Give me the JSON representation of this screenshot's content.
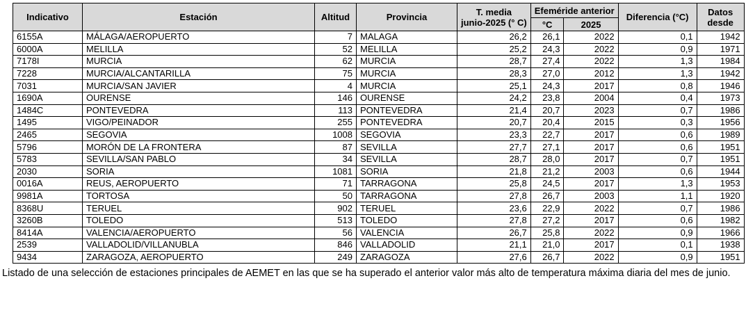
{
  "colors": {
    "header_bg": "#d9d9d9",
    "border": "#000000",
    "text": "#000000",
    "page_bg": "#ffffff"
  },
  "table": {
    "header": {
      "indicativo": "Indicativo",
      "estacion": "Estación",
      "altitud": "Altitud",
      "provincia": "Provincia",
      "t_media_line1": "T. media",
      "t_media_line2": "junio-2025 (° C)",
      "efemeride_group": "Efeméride anterior",
      "efemeride_c": "°C",
      "efemeride_year": "2025",
      "diferencia": "Diferencia (°C)",
      "datos_line1": "Datos",
      "datos_line2": "desde"
    },
    "columns": [
      {
        "name": "indicativo",
        "align": "left"
      },
      {
        "name": "estacion",
        "align": "left"
      },
      {
        "name": "altitud",
        "align": "right"
      },
      {
        "name": "provincia",
        "align": "left"
      },
      {
        "name": "t-media",
        "align": "right"
      },
      {
        "name": "efemeride-c",
        "align": "right"
      },
      {
        "name": "efemeride-year",
        "align": "right"
      },
      {
        "name": "diferencia",
        "align": "right"
      },
      {
        "name": "datos-desde",
        "align": "right"
      }
    ],
    "rows": [
      [
        "6155A",
        "MÁLAGA/AEROPUERTO",
        "7",
        "MALAGA",
        "26,2",
        "26,1",
        "2022",
        "0,1",
        "1942"
      ],
      [
        "6000A",
        "MELILLA",
        "52",
        "MELILLA",
        "25,2",
        "24,3",
        "2022",
        "0,9",
        "1971"
      ],
      [
        "7178I",
        "MURCIA",
        "62",
        "MURCIA",
        "28,7",
        "27,4",
        "2022",
        "1,3",
        "1984"
      ],
      [
        "7228",
        "MURCIA/ALCANTARILLA",
        "75",
        "MURCIA",
        "28,3",
        "27,0",
        "2012",
        "1,3",
        "1942"
      ],
      [
        "7031",
        "MURCIA/SAN JAVIER",
        "4",
        "MURCIA",
        "25,1",
        "24,3",
        "2017",
        "0,8",
        "1946"
      ],
      [
        "1690A",
        "OURENSE",
        "146",
        "OURENSE",
        "24,2",
        "23,8",
        "2004",
        "0,4",
        "1973"
      ],
      [
        "1484C",
        "PONTEVEDRA",
        "113",
        "PONTEVEDRA",
        "21,4",
        "20,7",
        "2023",
        "0,7",
        "1986"
      ],
      [
        "1495",
        "VIGO/PEINADOR",
        "255",
        "PONTEVEDRA",
        "20,7",
        "20,4",
        "2015",
        "0,3",
        "1956"
      ],
      [
        "2465",
        "SEGOVIA",
        "1008",
        "SEGOVIA",
        "23,3",
        "22,7",
        "2017",
        "0,6",
        "1989"
      ],
      [
        "5796",
        "MORÓN DE LA FRONTERA",
        "87",
        "SEVILLA",
        "27,7",
        "27,1",
        "2017",
        "0,6",
        "1951"
      ],
      [
        "5783",
        "SEVILLA/SAN PABLO",
        "34",
        "SEVILLA",
        "28,7",
        "28,0",
        "2017",
        "0,7",
        "1951"
      ],
      [
        "2030",
        "SORIA",
        "1081",
        "SORIA",
        "21,8",
        "21,2",
        "2003",
        "0,6",
        "1944"
      ],
      [
        "0016A",
        "REUS, AEROPUERTO",
        "71",
        "TARRAGONA",
        "25,8",
        "24,5",
        "2017",
        "1,3",
        "1953"
      ],
      [
        "9981A",
        "TORTOSA",
        "50",
        "TARRAGONA",
        "27,8",
        "26,7",
        "2003",
        "1,1",
        "1920"
      ],
      [
        "8368U",
        "TERUEL",
        "902",
        "TERUEL",
        "23,6",
        "22,9",
        "2022",
        "0,7",
        "1986"
      ],
      [
        "3260B",
        "TOLEDO",
        "513",
        "TOLEDO",
        "27,8",
        "27,2",
        "2017",
        "0,6",
        "1982"
      ],
      [
        "8414A",
        "VALENCIA/AEROPUERTO",
        "56",
        "VALENCIA",
        "26,7",
        "25,8",
        "2022",
        "0,9",
        "1966"
      ],
      [
        "2539",
        "VALLADOLID/VILLANUBLA",
        "846",
        "VALLADOLID",
        "21,1",
        "21,0",
        "2017",
        "0,1",
        "1938"
      ],
      [
        "9434",
        "ZARAGOZA, AEROPUERTO",
        "249",
        "ZARAGOZA",
        "27,6",
        "26,7",
        "2022",
        "0,9",
        "1951"
      ]
    ]
  },
  "caption": "Listado de una selección de estaciones principales de AEMET en las que se ha superado el anterior valor más alto de temperatura máxima diaria del mes de junio."
}
